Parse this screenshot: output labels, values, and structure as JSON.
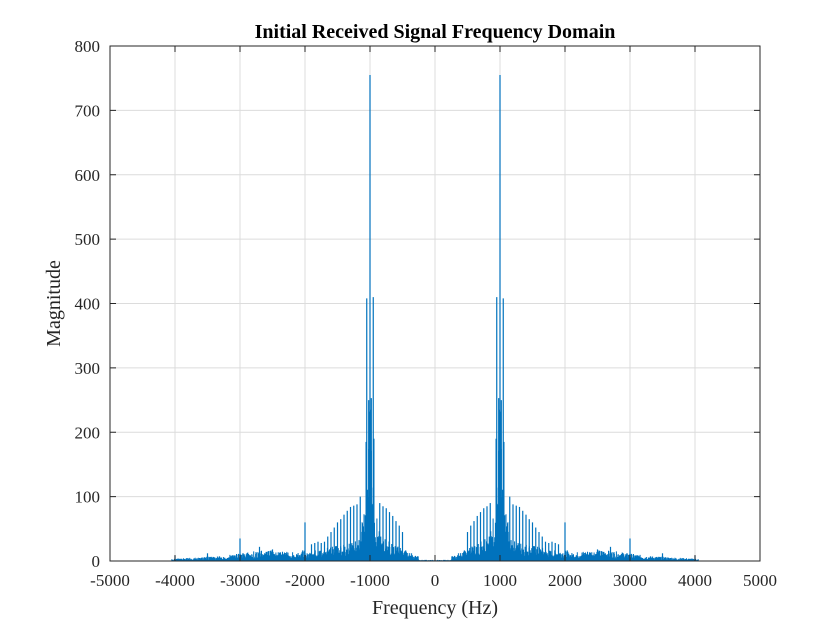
{
  "chart_data": {
    "type": "line",
    "title": "Initial Received Signal Frequency Domain",
    "xlabel": "Frequency (Hz)",
    "ylabel": "Magnitude",
    "xlim": [
      -5000,
      5000
    ],
    "ylim": [
      0,
      800
    ],
    "xticks": [
      -5000,
      -4000,
      -3000,
      -2000,
      -1000,
      0,
      1000,
      2000,
      3000,
      4000,
      5000
    ],
    "xtick_labels": [
      "-5000",
      "-4000",
      "-3000",
      "-2000",
      "-1000",
      "0",
      "1000",
      "2000",
      "3000",
      "4000",
      "5000"
    ],
    "yticks": [
      0,
      100,
      200,
      300,
      400,
      500,
      600,
      700,
      800
    ],
    "ytick_labels": [
      "0",
      "100",
      "200",
      "300",
      "400",
      "500",
      "600",
      "700",
      "800"
    ],
    "grid": true,
    "color": "#0072BD",
    "series": [
      {
        "symmetric_about_zero": true,
        "peaks": [
          {
            "x": 1000,
            "y": 755
          },
          {
            "x": 950,
            "y": 410
          },
          {
            "x": 1050,
            "y": 408
          },
          {
            "x": 980,
            "y": 253
          },
          {
            "x": 1020,
            "y": 250
          },
          {
            "x": 990,
            "y": 235
          },
          {
            "x": 1010,
            "y": 232
          },
          {
            "x": 940,
            "y": 190
          },
          {
            "x": 1060,
            "y": 185
          },
          {
            "x": 1150,
            "y": 100
          },
          {
            "x": 850,
            "y": 90
          },
          {
            "x": 1200,
            "y": 88
          },
          {
            "x": 800,
            "y": 85
          },
          {
            "x": 1250,
            "y": 86
          },
          {
            "x": 750,
            "y": 82
          },
          {
            "x": 1300,
            "y": 84
          },
          {
            "x": 700,
            "y": 76
          },
          {
            "x": 1350,
            "y": 78
          },
          {
            "x": 650,
            "y": 70
          },
          {
            "x": 1400,
            "y": 72
          },
          {
            "x": 600,
            "y": 62
          },
          {
            "x": 1450,
            "y": 65
          },
          {
            "x": 550,
            "y": 55
          },
          {
            "x": 1500,
            "y": 60
          },
          {
            "x": 500,
            "y": 45
          },
          {
            "x": 1550,
            "y": 52
          },
          {
            "x": 1600,
            "y": 45
          },
          {
            "x": 1650,
            "y": 38
          },
          {
            "x": 1700,
            "y": 30
          },
          {
            "x": 1750,
            "y": 28
          },
          {
            "x": 1800,
            "y": 30
          },
          {
            "x": 1850,
            "y": 28
          },
          {
            "x": 1900,
            "y": 26
          },
          {
            "x": 2000,
            "y": 60
          },
          {
            "x": 2500,
            "y": 18
          },
          {
            "x": 2700,
            "y": 22
          },
          {
            "x": 3000,
            "y": 35
          },
          {
            "x": 3500,
            "y": 12
          },
          {
            "x": 4000,
            "y": 8
          }
        ]
      }
    ]
  }
}
